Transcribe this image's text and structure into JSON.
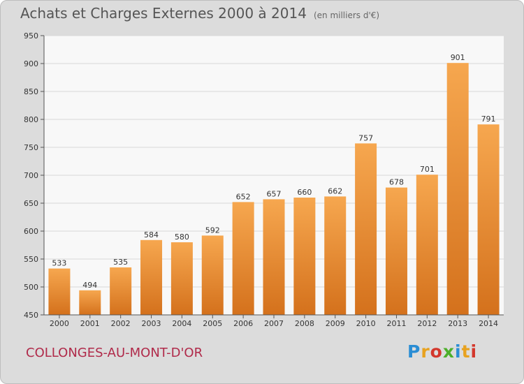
{
  "header": {
    "title": "Achats et Charges Externes 2000 à 2014",
    "subtitle": "(en milliers d'€)"
  },
  "footer": {
    "commune": "COLLONGES-AU-MONT-D'OR",
    "logo_text": "Proxiti",
    "logo_colors": [
      "#2a8dd4",
      "#e8a21f",
      "#d3372c",
      "#4caf2a",
      "#2a8dd4",
      "#e8a21f",
      "#d3372c"
    ]
  },
  "colors": {
    "bar_top": "#f6a74f",
    "bar_bottom": "#d4711c",
    "plot_bg": "#f8f8f8",
    "frame_bg": "#dcdcdc",
    "grid": "#d7d7d7"
  },
  "chart_data": {
    "type": "bar",
    "title": "Achats et Charges Externes 2000 à 2014",
    "subtitle": "(en milliers d'€)",
    "xlabel": "",
    "ylabel": "",
    "categories": [
      "2000",
      "2001",
      "2002",
      "2003",
      "2004",
      "2005",
      "2006",
      "2007",
      "2008",
      "2009",
      "2010",
      "2011",
      "2012",
      "2013",
      "2014"
    ],
    "values": [
      533,
      494,
      535,
      584,
      580,
      592,
      652,
      657,
      660,
      662,
      757,
      678,
      701,
      901,
      791
    ],
    "ylim": [
      450,
      950
    ],
    "yticks": [
      450,
      500,
      550,
      600,
      650,
      700,
      750,
      800,
      850,
      900,
      950
    ],
    "grid": true,
    "legend": "none"
  }
}
